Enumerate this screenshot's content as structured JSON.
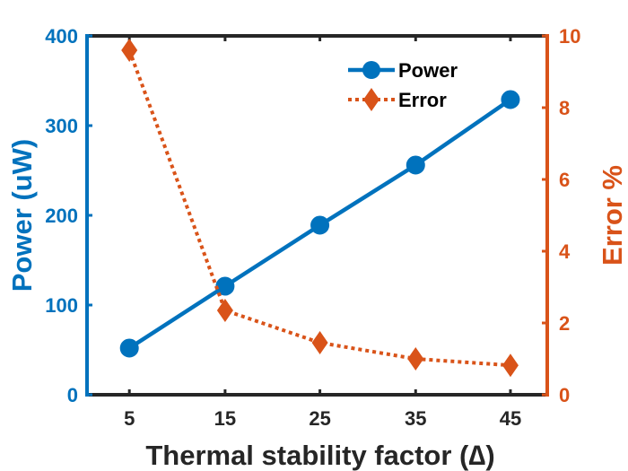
{
  "chart_data": {
    "type": "line",
    "x": [
      5,
      15,
      25,
      35,
      45
    ],
    "x_plot": [
      4.6,
      15.0,
      25.3,
      35.7,
      46.0
    ],
    "xticks": [
      "5",
      "15",
      "25",
      "35",
      "45"
    ],
    "xlabel": "Thermal stability factor (∆)",
    "xlim": [
      0,
      50
    ],
    "series": [
      {
        "name": "Power",
        "axis": "left",
        "values": [
          52,
          121,
          189,
          256,
          329
        ],
        "color": "#0072BD",
        "marker": "circle",
        "line": "solid"
      },
      {
        "name": "Error",
        "axis": "right",
        "values": [
          9.6,
          2.35,
          1.45,
          1.0,
          0.82
        ],
        "color": "#D95319",
        "marker": "diamond",
        "line": "dotted"
      }
    ],
    "ylabel_left": "Power (uW)",
    "ylim_left": [
      0,
      400
    ],
    "yticks_left": [
      "0",
      "100",
      "200",
      "300",
      "400"
    ],
    "ylabel_right": "Error %",
    "ylim_right": [
      0,
      10
    ],
    "yticks_right": [
      "0",
      "2",
      "4",
      "6",
      "8",
      "10"
    ],
    "legend_position": "top-right",
    "grid": false
  }
}
